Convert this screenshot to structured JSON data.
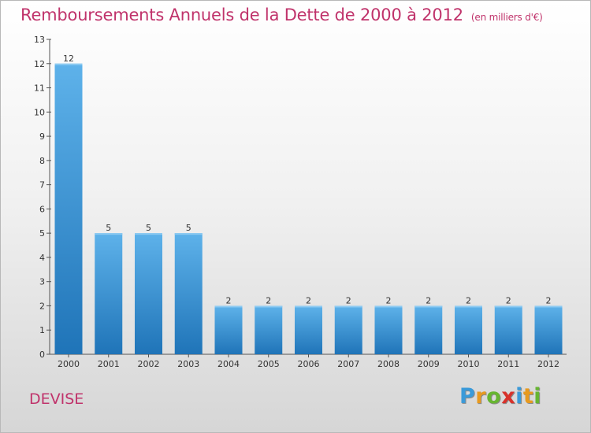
{
  "title": "Remboursements Annuels de la Dette de 2000 à 2012",
  "subtitle": "(en milliers d'€)",
  "commune": "DEVISE",
  "logo": {
    "letters": [
      "P",
      "r",
      "o",
      "x",
      "i",
      "t",
      "i"
    ],
    "colors": [
      "#3a9ad9",
      "#e89a1f",
      "#67b531",
      "#d8322b",
      "#3a9ad9",
      "#e89a1f",
      "#67b531"
    ]
  },
  "chart_data": {
    "type": "bar",
    "categories": [
      "2000",
      "2001",
      "2002",
      "2003",
      "2004",
      "2005",
      "2006",
      "2007",
      "2008",
      "2009",
      "2010",
      "2011",
      "2012"
    ],
    "values": [
      12,
      5,
      5,
      5,
      2,
      2,
      2,
      2,
      2,
      2,
      2,
      2,
      2
    ],
    "ylim": [
      0,
      13
    ],
    "yticks": [
      0,
      1,
      2,
      3,
      4,
      5,
      6,
      7,
      8,
      9,
      10,
      11,
      12,
      13
    ],
    "xlabel": "",
    "ylabel": "",
    "bar_color": "#3d97de",
    "grid": false,
    "legend": "none"
  }
}
